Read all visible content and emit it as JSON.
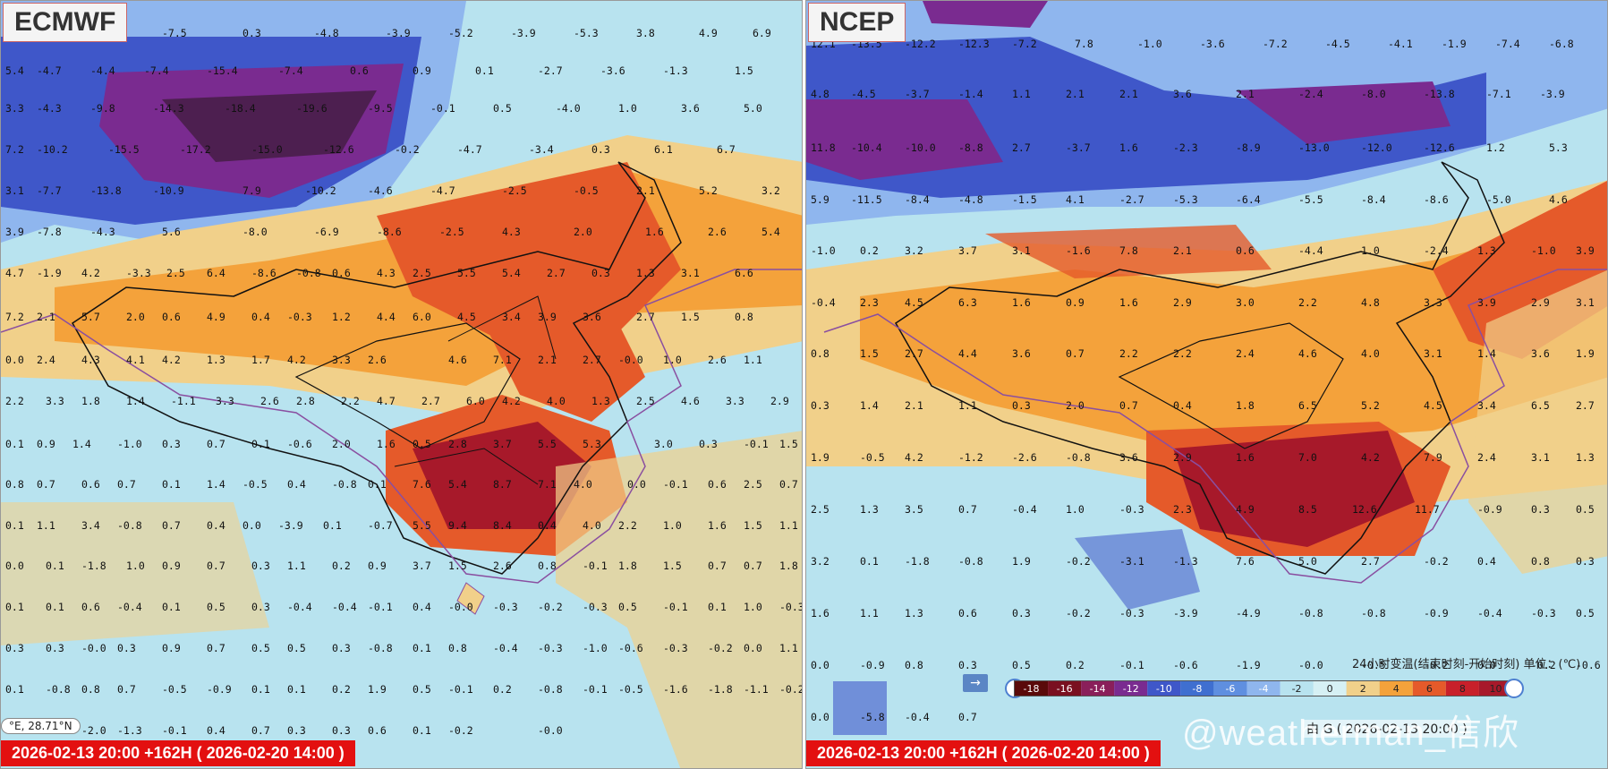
{
  "panels": {
    "ecmwf": {
      "title": "ECMWF",
      "timestamp": "2026-02-13 20:00 +162H ( 2026-02-20 14:00 )",
      "coord": "°E, 28.71°N"
    },
    "ncep": {
      "title": "NCEP",
      "timestamp": "2026-02-13 20:00 +162H ( 2026-02-20 14:00 )"
    }
  },
  "legend": {
    "title": "24小时变温(结束时刻-开始时刻) 单位：(℃)",
    "ticks": [
      "-18",
      "-16",
      "-14",
      "-12",
      "-10",
      "-8",
      "-6",
      "-4",
      "-2",
      "0",
      "2",
      "4",
      "6",
      "8",
      "10"
    ]
  },
  "arrow_label": "→",
  "footer_note": "由 G ( 2026-02-13 20:00 )",
  "watermark": "@weatherman_信欣",
  "colors": {
    "cold_strong": "#7a2b90",
    "cold": "#3f57c9",
    "cool": "#8fb6ee",
    "neutral": "#b8e3ef",
    "mild": "#f1d08a",
    "warm": "#f4a23b",
    "hot": "#e55a2a",
    "very_hot": "#a7192a",
    "border": "#111111",
    "coast": "#8a4fa0"
  }
}
